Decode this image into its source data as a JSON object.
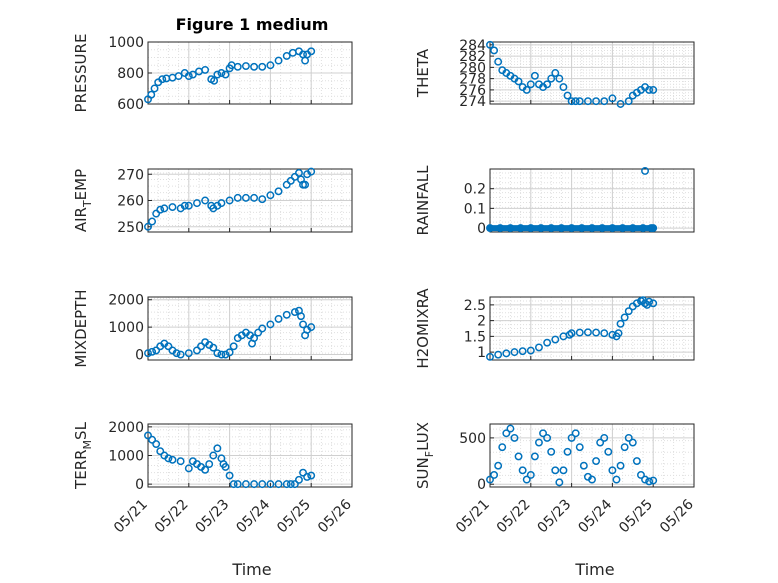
{
  "figure_title": "Figure 1 medium",
  "colors": {
    "series": "#0072BD",
    "axis": "#262626",
    "grid": "#DFDFDF"
  },
  "chart_data": [
    {
      "type": "scatter",
      "ylabel": "PRESSURE",
      "grid": true,
      "yticks": [
        600,
        800,
        1000
      ],
      "ylim": [
        600,
        1000
      ],
      "x": [
        0,
        0.08,
        0.16,
        0.25,
        0.35,
        0.45,
        0.6,
        0.75,
        0.9,
        1.0,
        1.1,
        1.25,
        1.4,
        1.55,
        1.62,
        1.7,
        1.8,
        1.9,
        2.0,
        2.05,
        2.2,
        2.4,
        2.6,
        2.8,
        3.0,
        3.2,
        3.4,
        3.55,
        3.7,
        3.8,
        3.85,
        3.9,
        4.0
      ],
      "y": [
        630,
        660,
        700,
        740,
        760,
        765,
        770,
        780,
        800,
        780,
        790,
        810,
        820,
        760,
        750,
        790,
        800,
        790,
        830,
        850,
        840,
        845,
        840,
        840,
        850,
        880,
        910,
        930,
        940,
        920,
        880,
        920,
        940
      ]
    },
    {
      "type": "scatter",
      "ylabel": "THETA",
      "grid": true,
      "yticks": [
        274,
        276,
        278,
        280,
        282,
        284
      ],
      "ylim": [
        273.5,
        284.5
      ],
      "x": [
        0,
        0.1,
        0.2,
        0.3,
        0.4,
        0.5,
        0.6,
        0.7,
        0.8,
        0.9,
        1.0,
        1.1,
        1.2,
        1.3,
        1.4,
        1.5,
        1.6,
        1.7,
        1.8,
        1.9,
        2.0,
        2.1,
        2.2,
        2.4,
        2.6,
        2.8,
        3.0,
        3.2,
        3.4,
        3.5,
        3.6,
        3.7,
        3.8,
        3.9,
        4.0
      ],
      "y": [
        284,
        283,
        281,
        279.5,
        279,
        278.5,
        278,
        277.5,
        276.5,
        276,
        277,
        278.5,
        277,
        276.5,
        277,
        278,
        279,
        278,
        276.5,
        275,
        274,
        274,
        274,
        274,
        274,
        274,
        274.5,
        273.5,
        274,
        275,
        275.5,
        276,
        276.5,
        276,
        276
      ]
    },
    {
      "type": "scatter",
      "ylabel": "AIR_T_EMP",
      "grid": true,
      "yticks": [
        250,
        260,
        270
      ],
      "ylim": [
        248,
        272
      ],
      "x": [
        0,
        0.1,
        0.2,
        0.3,
        0.4,
        0.6,
        0.8,
        0.9,
        1.0,
        1.2,
        1.4,
        1.55,
        1.6,
        1.7,
        1.8,
        2.0,
        2.2,
        2.4,
        2.6,
        2.8,
        3.0,
        3.2,
        3.4,
        3.5,
        3.6,
        3.7,
        3.75,
        3.8,
        3.85,
        3.9,
        4.0
      ],
      "y": [
        250,
        252,
        255,
        256.5,
        257,
        257.5,
        257,
        258,
        258,
        259,
        260,
        258,
        257,
        258,
        259,
        260,
        261,
        261,
        261,
        260.5,
        262,
        263.5,
        266,
        267.5,
        269,
        270.5,
        268,
        266,
        266,
        270,
        271
      ]
    },
    {
      "type": "scatter",
      "ylabel": "RAINFALL",
      "grid": true,
      "yticks": [
        0,
        0.1,
        0.2
      ],
      "ylim": [
        -0.02,
        0.3
      ],
      "x": [
        0,
        0.25,
        0.5,
        0.75,
        1.0,
        1.25,
        1.5,
        1.75,
        2.0,
        2.25,
        2.5,
        2.75,
        3.0,
        3.25,
        3.5,
        3.75,
        3.95,
        3.8,
        4.0
      ],
      "y": [
        0,
        0,
        0,
        0,
        0,
        0,
        0,
        0,
        0,
        0,
        0,
        0,
        0,
        0,
        0,
        0,
        0,
        0.29,
        0
      ]
    },
    {
      "type": "scatter",
      "ylabel": "MIXDEPTH",
      "grid": true,
      "yticks": [
        0,
        1000,
        2000
      ],
      "ylim": [
        -200,
        2100
      ],
      "x": [
        0,
        0.1,
        0.2,
        0.3,
        0.4,
        0.5,
        0.6,
        0.7,
        0.8,
        1.0,
        1.2,
        1.3,
        1.4,
        1.5,
        1.6,
        1.7,
        1.8,
        1.9,
        2.0,
        2.1,
        2.2,
        2.3,
        2.4,
        2.5,
        2.55,
        2.6,
        2.7,
        2.8,
        3.0,
        3.2,
        3.4,
        3.6,
        3.7,
        3.75,
        3.8,
        3.85,
        3.9,
        4.0
      ],
      "y": [
        50,
        100,
        150,
        300,
        400,
        300,
        150,
        50,
        0,
        50,
        150,
        300,
        450,
        350,
        250,
        50,
        0,
        0,
        80,
        300,
        600,
        700,
        800,
        700,
        400,
        600,
        800,
        950,
        1100,
        1300,
        1450,
        1550,
        1600,
        1400,
        1100,
        700,
        900,
        1000
      ]
    },
    {
      "type": "scatter",
      "ylabel": "H2OMIXRA",
      "grid": true,
      "yticks": [
        1,
        1.5,
        2,
        2.5
      ],
      "ylim": [
        0.75,
        2.75
      ],
      "x": [
        0,
        0.2,
        0.4,
        0.6,
        0.8,
        1.0,
        1.2,
        1.4,
        1.6,
        1.8,
        1.95,
        2.0,
        2.2,
        2.4,
        2.6,
        2.8,
        3.0,
        3.1,
        3.15,
        3.2,
        3.3,
        3.4,
        3.5,
        3.6,
        3.7,
        3.75,
        3.8,
        3.85,
        3.9,
        4.0
      ],
      "y": [
        0.85,
        0.92,
        0.96,
        1.0,
        1.03,
        1.05,
        1.15,
        1.3,
        1.4,
        1.5,
        1.55,
        1.6,
        1.62,
        1.63,
        1.62,
        1.6,
        1.55,
        1.5,
        1.6,
        1.9,
        2.1,
        2.3,
        2.45,
        2.55,
        2.62,
        2.65,
        2.55,
        2.5,
        2.6,
        2.55
      ]
    },
    {
      "type": "scatter",
      "ylabel": "TERR_M_SL",
      "grid": true,
      "yticks": [
        0,
        1000,
        2000
      ],
      "ylim": [
        -100,
        2100
      ],
      "x": [
        0,
        0.1,
        0.2,
        0.3,
        0.4,
        0.5,
        0.6,
        0.8,
        1.0,
        1.1,
        1.2,
        1.3,
        1.4,
        1.5,
        1.6,
        1.7,
        1.8,
        1.85,
        1.9,
        2.0,
        2.1,
        2.2,
        2.4,
        2.6,
        2.8,
        3.0,
        3.2,
        3.4,
        3.5,
        3.6,
        3.7,
        3.8,
        3.9,
        4.0
      ],
      "y": [
        1700,
        1550,
        1400,
        1150,
        1000,
        900,
        850,
        800,
        550,
        800,
        700,
        600,
        500,
        700,
        1000,
        1250,
        900,
        700,
        600,
        300,
        0,
        0,
        0,
        0,
        0,
        0,
        0,
        0,
        0,
        0,
        150,
        400,
        250,
        300
      ]
    },
    {
      "type": "scatter",
      "ylabel": "SUN_F_LUX",
      "grid": true,
      "yticks": [
        0,
        500
      ],
      "ylim": [
        -30,
        650
      ],
      "x": [
        0,
        0.1,
        0.2,
        0.3,
        0.4,
        0.5,
        0.6,
        0.7,
        0.8,
        0.9,
        1.0,
        1.1,
        1.2,
        1.3,
        1.4,
        1.5,
        1.6,
        1.7,
        1.8,
        1.9,
        2.0,
        2.1,
        2.2,
        2.3,
        2.4,
        2.5,
        2.6,
        2.7,
        2.8,
        2.9,
        3.0,
        3.1,
        3.2,
        3.3,
        3.4,
        3.5,
        3.6,
        3.7,
        3.8,
        3.9,
        4.0
      ],
      "y": [
        50,
        100,
        200,
        400,
        550,
        600,
        500,
        300,
        150,
        50,
        100,
        300,
        450,
        550,
        500,
        350,
        150,
        20,
        150,
        350,
        500,
        550,
        400,
        200,
        80,
        50,
        250,
        450,
        500,
        350,
        150,
        50,
        200,
        400,
        500,
        450,
        250,
        100,
        50,
        30,
        40
      ]
    }
  ],
  "x_axis": {
    "label": "Time",
    "ticklabels": [
      "05/21",
      "05/22",
      "05/23",
      "05/24",
      "05/25",
      "05/26"
    ],
    "range_days": [
      0,
      5
    ]
  }
}
